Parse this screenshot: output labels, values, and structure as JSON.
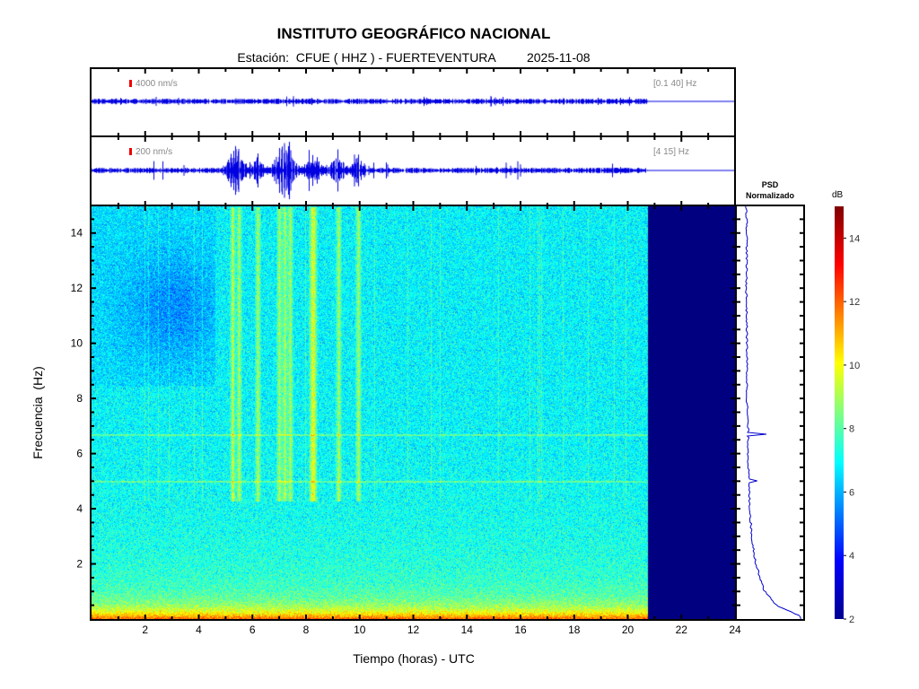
{
  "header": {
    "title": "INSTITUTO GEOGRÁFICO NACIONAL",
    "subtitle": "Estación:  CFUE ( HHZ ) - FUERTEVENTURA         2025-11-08"
  },
  "traces": [
    {
      "scale_label": "4000 nm/s",
      "band_label": "[0.1 40] Hz",
      "amplitude": 0.15
    },
    {
      "scale_label": "200 nm/s",
      "band_label": "[4 15] Hz",
      "amplitude": 0.3
    }
  ],
  "psd": {
    "title_line1": "PSD",
    "title_line2": "Normalizado"
  },
  "colorbar": {
    "label": "dB",
    "range": [
      2,
      15
    ],
    "ticks": [
      "2",
      "4",
      "6",
      "8",
      "10",
      "12",
      "14"
    ]
  },
  "chart_data": {
    "type": "heatmap",
    "title": "INSTITUTO GEOGRÁFICO NACIONAL",
    "xlabel": "Tiempo (horas) - UTC",
    "ylabel": "Frecuencia  (Hz)",
    "xlim": [
      0,
      24
    ],
    "ylim": [
      0,
      15
    ],
    "x_ticks": [
      "2",
      "4",
      "6",
      "8",
      "10",
      "12",
      "14",
      "16",
      "18",
      "20",
      "22",
      "24"
    ],
    "y_ticks": [
      "2",
      "4",
      "6",
      "8",
      "10",
      "12",
      "14"
    ],
    "data_end_hour": 20.75,
    "colormap": "jet",
    "event_hours": [
      5.25,
      5.5,
      6.2,
      7.0,
      7.2,
      7.4,
      8.2,
      8.3,
      9.2,
      9.95
    ],
    "spectral_lines_hz": [
      6.7,
      5.0
    ],
    "psd_profile": {
      "freq_hz": [
        0.1,
        0.5,
        1,
        2,
        3,
        4,
        5,
        6,
        6.7,
        8,
        10,
        12,
        14,
        15
      ],
      "value": [
        0.95,
        0.55,
        0.35,
        0.2,
        0.13,
        0.1,
        0.08,
        0.07,
        0.07,
        0.05,
        0.05,
        0.04,
        0.05,
        0.04
      ]
    }
  }
}
